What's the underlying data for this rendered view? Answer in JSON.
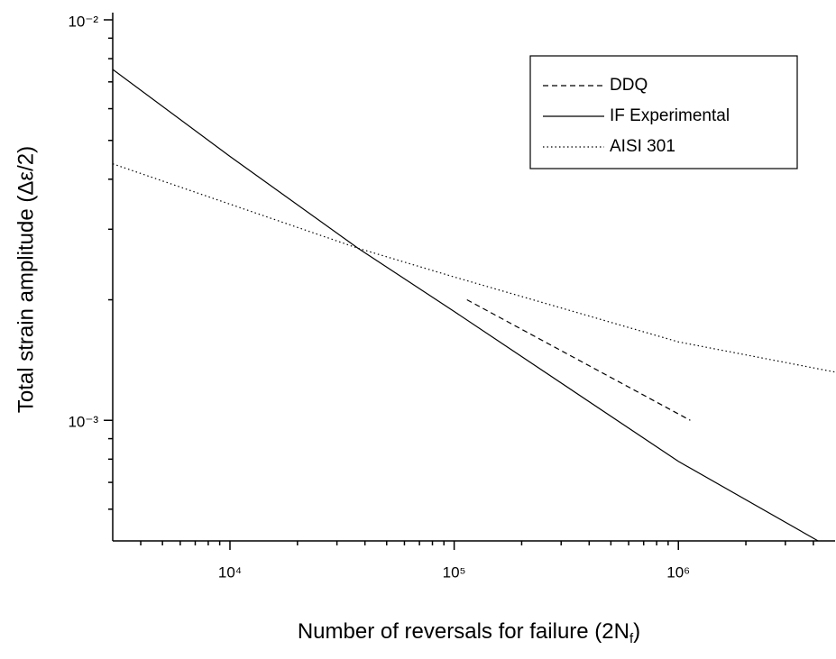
{
  "chart_data": {
    "type": "line",
    "x_label": [
      "Number of reversals for failure (2N",
      "f",
      ")"
    ],
    "y_label": "Total strain amplitude (Δε/2)",
    "log_x": true,
    "log_y": true,
    "xlim": [
      3000,
      5000000
    ],
    "ylim": [
      0.0005,
      0.01
    ],
    "xticks": [
      {
        "value": 10000,
        "label": "10⁴"
      },
      {
        "value": 100000,
        "label": "10⁵"
      },
      {
        "value": 1000000,
        "label": "10⁶"
      }
    ],
    "yticks": [
      {
        "value": 0.001,
        "label": "10⁻³"
      },
      {
        "value": 0.01,
        "label": "10⁻²"
      }
    ],
    "legend": "top-right",
    "series": [
      {
        "name": "DDQ",
        "color": "#000000",
        "style": "dashed",
        "x": [
          114000,
          1130000
        ],
        "values": [
          0.002,
          0.001
        ]
      },
      {
        "name": "IF Experimental",
        "color": "#000000",
        "style": "solid",
        "x": [
          3000,
          10000,
          37250,
          100000,
          1000000,
          4200000
        ],
        "values": [
          0.00752,
          0.00456,
          0.00269,
          0.00187,
          0.00079,
          0.0005
        ]
      },
      {
        "name": "AISI 301",
        "color": "#000000",
        "style": "dotted",
        "x": [
          3000,
          37250,
          100000,
          1000000,
          5000000
        ],
        "values": [
          0.00437,
          0.00269,
          0.00228,
          0.00157,
          0.00132
        ]
      }
    ]
  }
}
